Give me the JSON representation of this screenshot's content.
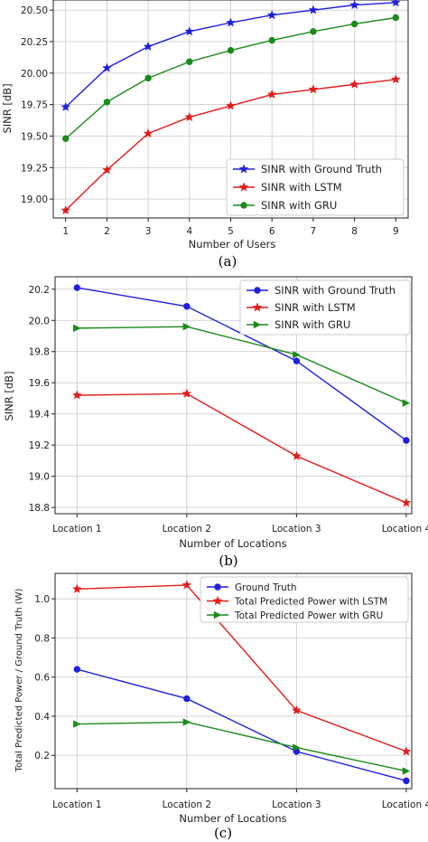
{
  "chart_data": [
    {
      "type": "line",
      "xlabel": "Number of Users",
      "ylabel": "SINR [dB]",
      "caption": "(a)",
      "x": [
        1,
        2,
        3,
        4,
        5,
        6,
        7,
        8,
        9
      ],
      "x_ticks": [
        "1",
        "2",
        "3",
        "4",
        "5",
        "6",
        "7",
        "8",
        "9"
      ],
      "y_ticks": [
        "19.00",
        "19.25",
        "19.50",
        "19.75",
        "20.00",
        "20.25",
        "20.50"
      ],
      "xlim": [
        0.7,
        9.3
      ],
      "ylim": [
        18.85,
        20.58
      ],
      "grid": true,
      "legend_position": "lower-right",
      "series": [
        {
          "name": "SINR with Ground Truth",
          "color": "#1f1fe0",
          "marker": "star",
          "values": [
            19.73,
            20.04,
            20.21,
            20.33,
            20.4,
            20.46,
            20.5,
            20.54,
            20.56
          ]
        },
        {
          "name": "SINR with LSTM",
          "color": "#e41a1a",
          "marker": "star",
          "values": [
            18.91,
            19.23,
            19.52,
            19.65,
            19.74,
            19.83,
            19.87,
            19.91,
            19.95
          ]
        },
        {
          "name": "SINR with GRU",
          "color": "#1a8a1a",
          "marker": "circle",
          "values": [
            19.48,
            19.77,
            19.96,
            20.09,
            20.18,
            20.26,
            20.33,
            20.39,
            20.44
          ]
        }
      ]
    },
    {
      "type": "line",
      "xlabel": "Number of Locations",
      "ylabel": "SINR [dB]",
      "caption": "(b)",
      "categories": [
        "Location 1",
        "Location 2",
        "Location 3",
        "Location 4"
      ],
      "y_ticks": [
        "18.8",
        "19.0",
        "19.2",
        "19.4",
        "19.6",
        "19.8",
        "20.0",
        "20.2"
      ],
      "ylim": [
        18.76,
        20.28
      ],
      "grid": true,
      "legend_position": "top-right",
      "series": [
        {
          "name": "SINR with Ground Truth",
          "color": "#1f1fe0",
          "marker": "circle",
          "values": [
            20.21,
            20.09,
            19.74,
            19.23
          ]
        },
        {
          "name": "SINR with LSTM",
          "color": "#e41a1a",
          "marker": "star",
          "values": [
            19.52,
            19.53,
            19.13,
            18.83
          ]
        },
        {
          "name": "SINR with GRU",
          "color": "#1a8a1a",
          "marker": "triangle-right",
          "values": [
            19.95,
            19.96,
            19.78,
            19.47
          ]
        }
      ]
    },
    {
      "type": "line",
      "xlabel": "Number of Locations",
      "ylabel": "Total Predicted Power / Ground Truth (W)",
      "caption": "(c)",
      "categories": [
        "Location 1",
        "Location 2",
        "Location 3",
        "Location 4"
      ],
      "y_ticks": [
        "0.2",
        "0.4",
        "0.6",
        "0.8",
        "1.0"
      ],
      "ylim": [
        0.03,
        1.13
      ],
      "grid": true,
      "legend_position": "top-right",
      "series": [
        {
          "name": "Ground Truth",
          "color": "#1f1fe0",
          "marker": "circle",
          "values": [
            0.64,
            0.49,
            0.22,
            0.07
          ]
        },
        {
          "name": "Total Predicted Power with LSTM",
          "color": "#e41a1a",
          "marker": "star",
          "values": [
            1.05,
            1.07,
            0.43,
            0.22
          ]
        },
        {
          "name": "Total Predicted Power with GRU",
          "color": "#1a8a1a",
          "marker": "triangle-right",
          "values": [
            0.36,
            0.37,
            0.24,
            0.12
          ]
        }
      ]
    }
  ]
}
